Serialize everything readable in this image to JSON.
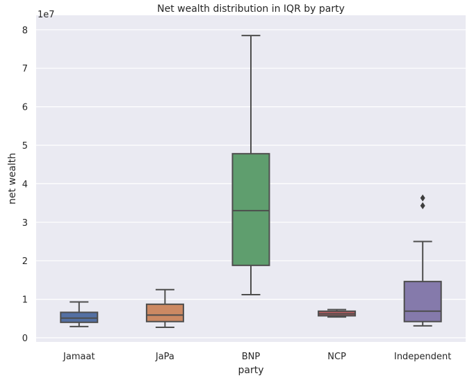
{
  "chart_data": {
    "type": "box",
    "title": "Net wealth distribution in IQR by party",
    "xlabel": "party",
    "ylabel": "net wealth",
    "y_offset_label": "1e7",
    "ylim": [
      -0.1,
      8.4
    ],
    "yticks": [
      0,
      1,
      2,
      3,
      4,
      5,
      6,
      7,
      8
    ],
    "y_unit_multiplier": 10000000,
    "grid": true,
    "background": "#eaeaf2",
    "categories": [
      "Jamaat",
      "JaPa",
      "BNP",
      "NCP",
      "Independent"
    ],
    "boxes": [
      {
        "category": "Jamaat",
        "whisker_low": 0.29,
        "q1": 0.4,
        "median": 0.51,
        "q3": 0.66,
        "whisker_high": 0.93,
        "outliers": [],
        "color": "#5470a3"
      },
      {
        "category": "JaPa",
        "whisker_low": 0.27,
        "q1": 0.42,
        "median": 0.59,
        "q3": 0.87,
        "whisker_high": 1.25,
        "outliers": [],
        "color": "#cc8963"
      },
      {
        "category": "BNP",
        "whisker_low": 1.12,
        "q1": 1.88,
        "median": 3.3,
        "q3": 4.78,
        "whisker_high": 7.85,
        "outliers": [],
        "color": "#5f9e6e"
      },
      {
        "category": "NCP",
        "whisker_low": 0.54,
        "q1": 0.57,
        "median": 0.62,
        "q3": 0.69,
        "whisker_high": 0.73,
        "outliers": [],
        "color": "#b55d60"
      },
      {
        "category": "Independent",
        "whisker_low": 0.31,
        "q1": 0.42,
        "median": 0.69,
        "q3": 1.46,
        "whisker_high": 2.5,
        "outliers": [
          3.43,
          3.63
        ],
        "color": "#857aab"
      }
    ]
  }
}
